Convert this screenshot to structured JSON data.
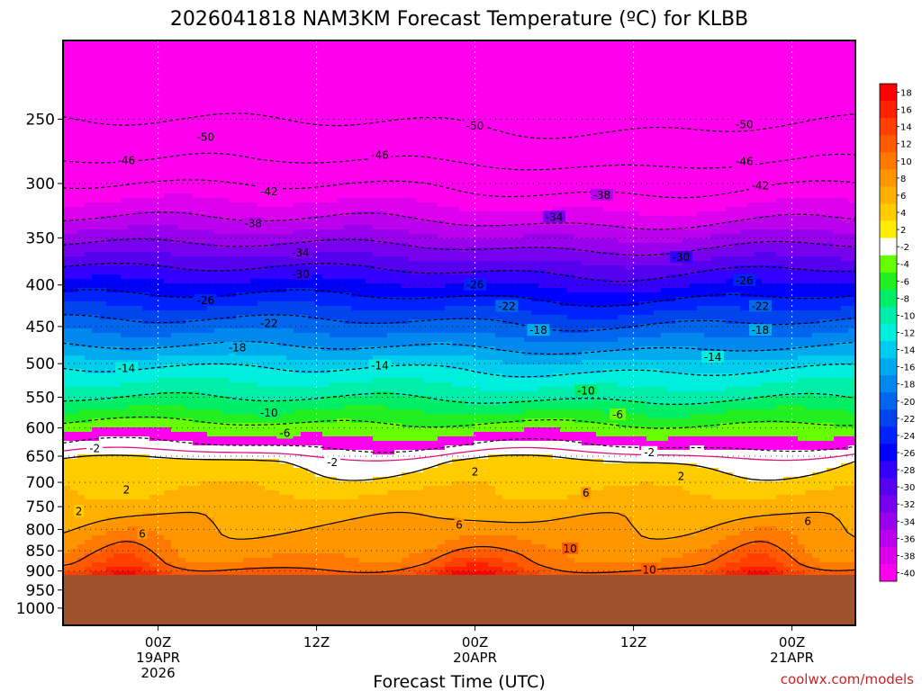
{
  "chart_data": {
    "type": "heatmap",
    "title": "2026041818 NAM3KM Forecast Temperature (ºC) for KLBB",
    "xlabel": "Forecast Time (UTC)",
    "ylabel": "",
    "credit": "coolwx.com/models",
    "y_scale": "log-pressure",
    "y_range_hPa": [
      1050,
      200
    ],
    "y_ticks": [
      "250",
      "300",
      "350",
      "400",
      "450",
      "500",
      "550",
      "600",
      "650",
      "700",
      "750",
      "800",
      "850",
      "900",
      "950",
      "1000"
    ],
    "y_tick_values": [
      250,
      300,
      350,
      400,
      450,
      500,
      550,
      600,
      650,
      700,
      750,
      800,
      850,
      900,
      950,
      1000
    ],
    "x_range_hours": [
      18,
      68
    ],
    "x_ticks": [
      {
        "hour": 24,
        "lines": [
          "00Z",
          "19APR",
          "2026"
        ]
      },
      {
        "hour": 34,
        "lines": [
          "12Z"
        ]
      },
      {
        "hour": 44,
        "lines": [
          "00Z",
          "20APR"
        ]
      },
      {
        "hour": 54,
        "lines": [
          "12Z"
        ]
      },
      {
        "hour": 64,
        "lines": [
          "00Z",
          "21APR"
        ]
      }
    ],
    "ground_level_hPa": 910,
    "colorbar_labels": [
      "18",
      "16",
      "14",
      "12",
      "10",
      "8",
      "6",
      "4",
      "2",
      "-2",
      "-4",
      "-6",
      "-8",
      "-10",
      "-12",
      "-14",
      "-16",
      "-18",
      "-20",
      "-22",
      "-24",
      "-26",
      "-28",
      "-30",
      "-32",
      "-34",
      "-36",
      "-38",
      "-40"
    ],
    "colorbar_values": [
      18,
      16,
      14,
      12,
      10,
      8,
      6,
      4,
      2,
      -2,
      -4,
      -6,
      -8,
      -10,
      -12,
      -14,
      -16,
      -18,
      -20,
      -22,
      -24,
      -26,
      -28,
      -30,
      -32,
      -34,
      -36,
      -38,
      -40
    ],
    "temperature_profile": [
      {
        "p": 200,
        "t": -58
      },
      {
        "p": 250,
        "t": -50
      },
      {
        "p": 280,
        "t": -46
      },
      {
        "p": 300,
        "t": -42
      },
      {
        "p": 330,
        "t": -38
      },
      {
        "p": 355,
        "t": -34
      },
      {
        "p": 380,
        "t": -30
      },
      {
        "p": 410,
        "t": -26
      },
      {
        "p": 440,
        "t": -22
      },
      {
        "p": 475,
        "t": -18
      },
      {
        "p": 505,
        "t": -14
      },
      {
        "p": 550,
        "t": -10
      },
      {
        "p": 590,
        "t": -6
      },
      {
        "p": 630,
        "t": -2
      },
      {
        "p": 660,
        "t": 2
      },
      {
        "p": 720,
        "t": 4
      },
      {
        "p": 780,
        "t": 6
      },
      {
        "p": 840,
        "t": 8
      },
      {
        "p": 880,
        "t": 10
      },
      {
        "p": 910,
        "t": 13
      }
    ],
    "isotherms": [
      -50,
      -46,
      -42,
      -38,
      -34,
      -30,
      -26,
      -22,
      -18,
      -14,
      -10,
      -6,
      -2,
      2,
      6,
      10
    ],
    "contour_labels": [
      {
        "t": -50,
        "hour": 27,
        "p": 263
      },
      {
        "t": -50,
        "hour": 44,
        "p": 255
      },
      {
        "t": -50,
        "hour": 61,
        "p": 254
      },
      {
        "t": -46,
        "hour": 22,
        "p": 281
      },
      {
        "t": -46,
        "hour": 38,
        "p": 277
      },
      {
        "t": -46,
        "hour": 61,
        "p": 282
      },
      {
        "t": -42,
        "hour": 31,
        "p": 307
      },
      {
        "t": -42,
        "hour": 62,
        "p": 302
      },
      {
        "t": -38,
        "hour": 30,
        "p": 336
      },
      {
        "t": -38,
        "hour": 52,
        "p": 310
      },
      {
        "t": -34,
        "hour": 33,
        "p": 365
      },
      {
        "t": -34,
        "hour": 49,
        "p": 330
      },
      {
        "t": -30,
        "hour": 33,
        "p": 388
      },
      {
        "t": -30,
        "hour": 57,
        "p": 370
      },
      {
        "t": -26,
        "hour": 27,
        "p": 418
      },
      {
        "t": -26,
        "hour": 44,
        "p": 400
      },
      {
        "t": -26,
        "hour": 61,
        "p": 395
      },
      {
        "t": -22,
        "hour": 31,
        "p": 446
      },
      {
        "t": -22,
        "hour": 46,
        "p": 425
      },
      {
        "t": -22,
        "hour": 62,
        "p": 425
      },
      {
        "t": -18,
        "hour": 29,
        "p": 478
      },
      {
        "t": -18,
        "hour": 48,
        "p": 455
      },
      {
        "t": -18,
        "hour": 62,
        "p": 455
      },
      {
        "t": -14,
        "hour": 22,
        "p": 507
      },
      {
        "t": -14,
        "hour": 38,
        "p": 503
      },
      {
        "t": -14,
        "hour": 59,
        "p": 491
      },
      {
        "t": -10,
        "hour": 31,
        "p": 575
      },
      {
        "t": -10,
        "hour": 51,
        "p": 540
      },
      {
        "t": -6,
        "hour": 32,
        "p": 609
      },
      {
        "t": -6,
        "hour": 53,
        "p": 578
      },
      {
        "t": -2,
        "hour": 20,
        "p": 636
      },
      {
        "t": -2,
        "hour": 35,
        "p": 662
      },
      {
        "t": -2,
        "hour": 55,
        "p": 643
      },
      {
        "t": 2,
        "hour": 22,
        "p": 715
      },
      {
        "t": 2,
        "hour": 19,
        "p": 760
      },
      {
        "t": 2,
        "hour": 44,
        "p": 680
      },
      {
        "t": 2,
        "hour": 57,
        "p": 688
      },
      {
        "t": 6,
        "hour": 23,
        "p": 810
      },
      {
        "t": 6,
        "hour": 43,
        "p": 790
      },
      {
        "t": 6,
        "hour": 51,
        "p": 722
      },
      {
        "t": 6,
        "hour": 65,
        "p": 782
      },
      {
        "t": 10,
        "hour": 50,
        "p": 845
      },
      {
        "t": 10,
        "hour": 55,
        "p": 897
      }
    ]
  }
}
